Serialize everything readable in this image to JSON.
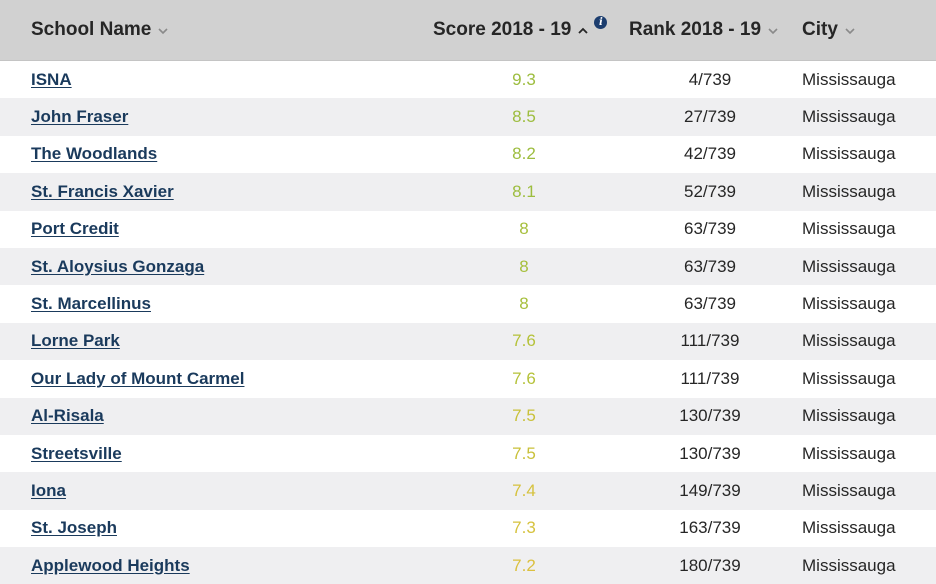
{
  "header": {
    "name_label": "School Name",
    "score_label": "Score 2018 - 19",
    "rank_label": "Rank 2018 - 19",
    "city_label": "City",
    "info_glyph": "i",
    "sort_state": {
      "score": "ascending-arrow-icon",
      "name": "chevron-down-icon",
      "rank": "chevron-down-icon",
      "city": "chevron-down-icon"
    }
  },
  "colors": {
    "header_bg": "#d1d1d1",
    "row_alt_bg": "#efeff1",
    "link": "#1a3a5c",
    "score_high": "#9dbd3f",
    "score_mid": "#c3c23a",
    "score_low": "#d6c23e"
  },
  "rows": [
    {
      "name": "ISNA",
      "score": "9.3",
      "rank": "4/739",
      "city": "Mississauga",
      "score_color": "#9dbd3f"
    },
    {
      "name": "John Fraser",
      "score": "8.5",
      "rank": "27/739",
      "city": "Mississauga",
      "score_color": "#9dbd3f"
    },
    {
      "name": "The Woodlands",
      "score": "8.2",
      "rank": "42/739",
      "city": "Mississauga",
      "score_color": "#9dbd3f"
    },
    {
      "name": "St. Francis Xavier",
      "score": "8.1",
      "rank": "52/739",
      "city": "Mississauga",
      "score_color": "#9dbd3f"
    },
    {
      "name": "Port Credit",
      "score": "8",
      "rank": "63/739",
      "city": "Mississauga",
      "score_color": "#a6bf3c"
    },
    {
      "name": "St. Aloysius Gonzaga",
      "score": "8",
      "rank": "63/739",
      "city": "Mississauga",
      "score_color": "#a6bf3c"
    },
    {
      "name": "St. Marcellinus",
      "score": "8",
      "rank": "63/739",
      "city": "Mississauga",
      "score_color": "#a6bf3c"
    },
    {
      "name": "Lorne Park",
      "score": "7.6",
      "rank": "111/739",
      "city": "Mississauga",
      "score_color": "#b5c23a"
    },
    {
      "name": "Our Lady of Mount Carmel",
      "score": "7.6",
      "rank": "111/739",
      "city": "Mississauga",
      "score_color": "#b5c23a"
    },
    {
      "name": "Al-Risala",
      "score": "7.5",
      "rank": "130/739",
      "city": "Mississauga",
      "score_color": "#c9c13a"
    },
    {
      "name": "Streetsville",
      "score": "7.5",
      "rank": "130/739",
      "city": "Mississauga",
      "score_color": "#c9c13a"
    },
    {
      "name": "Iona",
      "score": "7.4",
      "rank": "149/739",
      "city": "Mississauga",
      "score_color": "#d6c23e"
    },
    {
      "name": "St. Joseph",
      "score": "7.3",
      "rank": "163/739",
      "city": "Mississauga",
      "score_color": "#d6c23e"
    },
    {
      "name": "Applewood Heights",
      "score": "7.2",
      "rank": "180/739",
      "city": "Mississauga",
      "score_color": "#dbc03f"
    }
  ]
}
